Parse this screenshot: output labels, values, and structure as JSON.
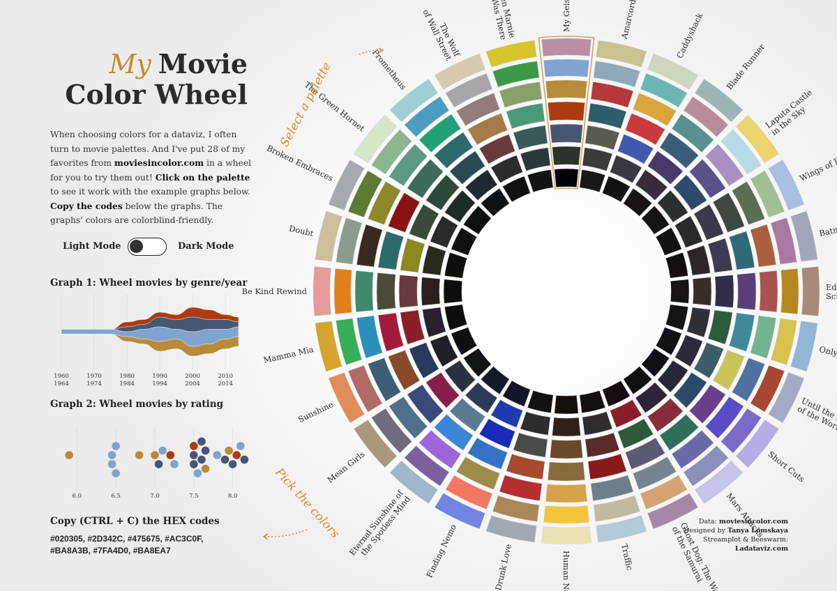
{
  "title": {
    "my": "My",
    "movie": "Movie",
    "line2": "Color Wheel"
  },
  "intro": {
    "p1": "When choosing colors for a dataviz, I often turn to movie palettes. And I've put 28 of my favorites from ",
    "site": "moviesincolor.com",
    "p2": " in a wheel for you to try them out! ",
    "click": "Click on the palette",
    "p3": " to see it work with the example graphs below. ",
    "copy": "Copy the codes",
    "p4": " below the graphs. The graphs' colors are colorblind-friendly."
  },
  "toggle": {
    "light": "Light Mode",
    "dark": "Dark Mode"
  },
  "graph1": {
    "title": "Graph 1: Wheel movies by genre/year",
    "ticks": [
      {
        "a": "1960",
        "b": "1964"
      },
      {
        "a": "1970",
        "b": "1974"
      },
      {
        "a": "1980",
        "b": "1984"
      },
      {
        "a": "1990",
        "b": "1994"
      },
      {
        "a": "2000",
        "b": "2004"
      },
      {
        "a": "2010",
        "b": "2014"
      }
    ],
    "colors": [
      "#ac3c0f",
      "#475675",
      "#7fa4d0",
      "#ba8a3b"
    ]
  },
  "graph2": {
    "title": "Graph 2: Wheel movies by rating",
    "ticks": [
      "6.0",
      "6.5",
      "7.0",
      "7.5",
      "8.0"
    ]
  },
  "copy_title": "Copy (CTRL + C) the HEX codes",
  "hex_line1": "#020305, #2D342C, #475675, #AC3C0F,",
  "hex_line2": "#BA8A3B, #7FA4D0, #BA8EA7",
  "annotations": {
    "select": "Select a palette",
    "pick": "Pick the colors"
  },
  "credits": {
    "data_label": "Data: ",
    "data_val": "moviesincolor.com",
    "design_label": "Designed by ",
    "design_val": "Tanya Lomskaya",
    "tool_label": "Streamplot & Beeswarm:",
    "tool_val": "Ladataviz.com"
  },
  "chart_data": [
    {
      "type": "radial-palette-wheel",
      "selected": "My Geisha",
      "movies": [
        {
          "name": "My Geisha",
          "colors": [
            "#ba8ea7",
            "#7fa4d0",
            "#ba8a3b",
            "#ac3c0f",
            "#475675",
            "#2d342c",
            "#020305"
          ]
        },
        {
          "name": "Amarcord",
          "colors": [
            "#c8c290",
            "#8fa9b8",
            "#b5393a",
            "#2e5e6d",
            "#5a5a4e",
            "#3a3a3a",
            "#1a1816"
          ]
        },
        {
          "name": "Caddyshack",
          "colors": [
            "#cfd6bf",
            "#6bb6b4",
            "#d8a63a",
            "#c9393e",
            "#4058ad",
            "#3a3840",
            "#141212"
          ]
        },
        {
          "name": "Blade Runner",
          "colors": [
            "#9bb6b4",
            "#b98c9a",
            "#5a8f8f",
            "#3b5d7a",
            "#4a3a6a",
            "#3a2b3a",
            "#191515"
          ]
        },
        {
          "name": "Laputa Castle in the Sky",
          "colors": [
            "#efd36e",
            "#b6dbe6",
            "#a890c2",
            "#5a508a",
            "#2d4a6a",
            "#2d3030",
            "#141416"
          ]
        },
        {
          "name": "Wings of Desire",
          "colors": [
            "#a6bfe3",
            "#9fbf93",
            "#5c6e52",
            "#3f4740",
            "#3a3a48",
            "#2a2a2c",
            "#121214"
          ]
        },
        {
          "name": "Batman",
          "colors": [
            "#a2a6bd",
            "#a979a2",
            "#ab5f3f",
            "#306a7a",
            "#3d3a52",
            "#2c262a",
            "#120e10"
          ]
        },
        {
          "name": "Edward Scissorhands",
          "colors": [
            "#a78b78",
            "#b8861f",
            "#a8534f",
            "#5a3e7a",
            "#2f2f4a",
            "#3a2d2e",
            "#161215"
          ]
        },
        {
          "name": "Only Yesterday",
          "colors": [
            "#92b6d4",
            "#d7c24c",
            "#71b48e",
            "#3f8a9b",
            "#2e5a3e",
            "#2c3236",
            "#121416"
          ]
        },
        {
          "name": "Until the End of the World",
          "colors": [
            "#a5a9c6",
            "#a8472f",
            "#4f72a4",
            "#c9c45a",
            "#3c5d66",
            "#2d2a3e",
            "#121115"
          ]
        },
        {
          "name": "Short Cuts",
          "colors": [
            "#b6ade6",
            "#7c6ac8",
            "#5a4cc6",
            "#6a3e8a",
            "#2e4a6a",
            "#26283a",
            "#100f13"
          ]
        },
        {
          "name": "Mars Attacks",
          "colors": [
            "#c4c4ec",
            "#8c8fbb",
            "#6b6aa8",
            "#2f6f5a",
            "#8a2b3a",
            "#2d2437",
            "#120f11"
          ]
        },
        {
          "name": "Ghost Dog: The Way of the Samurai",
          "colors": [
            "#a787a6",
            "#d5a373",
            "#75858f",
            "#5a5a72",
            "#2e5a3a",
            "#8a1e2a",
            "#160d10"
          ]
        },
        {
          "name": "Traffic",
          "colors": [
            "#b5c9d7",
            "#c1baa3",
            "#6e7e8a",
            "#8a1a1a",
            "#5a2a2a",
            "#2e2c2e",
            "#140f10"
          ]
        },
        {
          "name": "Human Nature",
          "colors": [
            "#ebe3b3",
            "#f3c53d",
            "#d5a24a",
            "#8a6a3a",
            "#6a4a2a",
            "#2e2218",
            "#150f0c"
          ]
        },
        {
          "name": "Punch-Drunk Love",
          "colors": [
            "#a3a9b3",
            "#a98759",
            "#b42e2f",
            "#a8482f",
            "#4a4a4a",
            "#2e2c2c",
            "#121212"
          ]
        },
        {
          "name": "Finding Nemo",
          "colors": [
            "#7285e3",
            "#f47762",
            "#9c8c47",
            "#3472c6",
            "#1a2bbb",
            "#1e3bb0",
            "#14142a"
          ]
        },
        {
          "name": "Eternal Sunshine of the Spotless Mind",
          "colors": [
            "#9fb6cc",
            "#7c5f9e",
            "#9e64d9",
            "#3a86d8",
            "#5a7a94",
            "#2e3a5a",
            "#141a2a"
          ]
        },
        {
          "name": "Mean Girls",
          "colors": [
            "#a8997d",
            "#6f6c7e",
            "#4f6f8c",
            "#3a4a7a",
            "#8a1e4a",
            "#2a3240",
            "#121418"
          ]
        },
        {
          "name": "Sunshine",
          "colors": [
            "#e28c5a",
            "#b06a68",
            "#3e5d76",
            "#8a4a2a",
            "#2a3a5a",
            "#202028",
            "#0f0e10"
          ]
        },
        {
          "name": "Mamma Mia",
          "colors": [
            "#d6a32c",
            "#35ae55",
            "#2a8fbb",
            "#a41a3a",
            "#8a1e2a",
            "#2a2030",
            "#0f0c10"
          ]
        },
        {
          "name": "Be Kind Rewind",
          "colors": [
            "#e39c9a",
            "#e2801a",
            "#3e8a6a",
            "#4a4a3a",
            "#6a3a3a",
            "#2a2020",
            "#100c0c"
          ]
        },
        {
          "name": "Doubt",
          "colors": [
            "#cdbf9c",
            "#8a9c8e",
            "#3a2a22",
            "#2e6a6a",
            "#8a8a1e",
            "#2a2a20",
            "#100f0c"
          ]
        },
        {
          "name": "Broken Embraces",
          "colors": [
            "#a6aab0",
            "#5c7c34",
            "#8a8a2a",
            "#8a1212",
            "#3a4a3a",
            "#2a2a2a",
            "#121010"
          ]
        },
        {
          "name": "The Green Hornet",
          "colors": [
            "#d5e7c9",
            "#8bb78e",
            "#5c9a86",
            "#3e6a5a",
            "#2e4a3a",
            "#1e2a26",
            "#0e1010"
          ]
        },
        {
          "name": "Prometheus",
          "colors": [
            "#9dcfd2",
            "#4a9cc0",
            "#22a07a",
            "#2e6a6a",
            "#2a4a52",
            "#1e2a30",
            "#0e1214"
          ]
        },
        {
          "name": "The Wolf of Wall Street",
          "colors": [
            "#d5c9b0",
            "#a9a5ab",
            "#927c79",
            "#a67a4a",
            "#6a3a3a",
            "#2e2c2e",
            "#121112"
          ]
        },
        {
          "name": "When Marnie Was There",
          "colors": [
            "#d6c52c",
            "#3a9a4a",
            "#8aa06a",
            "#4a9a7a",
            "#3a5a5a",
            "#2a3a3a",
            "#101414"
          ]
        }
      ]
    },
    {
      "type": "area",
      "title": "Graph 1: Wheel movies by genre/year",
      "x": [
        1960,
        1965,
        1970,
        1975,
        1980,
        1985,
        1990,
        1995,
        2000,
        2005,
        2010,
        2014
      ],
      "series": [
        {
          "values": [
            0,
            0,
            0,
            0,
            1,
            1,
            1,
            1,
            2,
            2,
            1,
            1
          ]
        },
        {
          "values": [
            0,
            0,
            0,
            0,
            1,
            1,
            2,
            2,
            3,
            2,
            2,
            1
          ]
        },
        {
          "values": [
            1,
            1,
            1,
            1,
            1,
            2,
            3,
            2,
            3,
            3,
            2,
            2
          ]
        },
        {
          "values": [
            0,
            0,
            0,
            0,
            1,
            1,
            2,
            2,
            2,
            2,
            2,
            2
          ]
        }
      ]
    },
    {
      "type": "scatter",
      "title": "Graph 2: Wheel movies by rating",
      "xlim": [
        5.8,
        8.2
      ],
      "points": [
        {
          "x": 5.9,
          "c": 3
        },
        {
          "x": 6.45,
          "c": 2
        },
        {
          "x": 6.45,
          "c": 2
        },
        {
          "x": 6.5,
          "c": 2
        },
        {
          "x": 6.5,
          "c": 2
        },
        {
          "x": 6.8,
          "c": 3
        },
        {
          "x": 7.0,
          "c": 3
        },
        {
          "x": 7.05,
          "c": 1
        },
        {
          "x": 7.1,
          "c": 2
        },
        {
          "x": 7.2,
          "c": 0
        },
        {
          "x": 7.25,
          "c": 2
        },
        {
          "x": 7.5,
          "c": 1
        },
        {
          "x": 7.5,
          "c": 1
        },
        {
          "x": 7.5,
          "c": 0
        },
        {
          "x": 7.55,
          "c": 2
        },
        {
          "x": 7.6,
          "c": 1
        },
        {
          "x": 7.65,
          "c": 1
        },
        {
          "x": 7.6,
          "c": 1
        },
        {
          "x": 7.65,
          "c": 3
        },
        {
          "x": 7.8,
          "c": 2
        },
        {
          "x": 7.9,
          "c": 1
        },
        {
          "x": 7.95,
          "c": 3
        },
        {
          "x": 8.0,
          "c": 1
        },
        {
          "x": 8.05,
          "c": 0
        },
        {
          "x": 8.1,
          "c": 2
        },
        {
          "x": 8.15,
          "c": 1
        }
      ]
    }
  ]
}
